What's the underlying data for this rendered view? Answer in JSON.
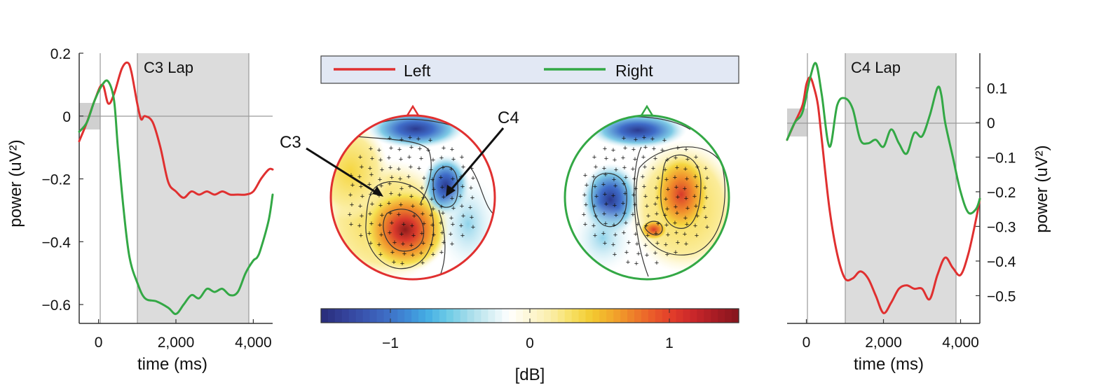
{
  "colors": {
    "left": "#e03030",
    "right": "#33a845",
    "shade": "#dcdcdc",
    "legend_bg": "#e2e8f4",
    "map_low": "#2b3a8f",
    "map_high": "#8b1a1a"
  },
  "legend": {
    "left_label": "Left",
    "right_label": "Right"
  },
  "colorbar": {
    "unit": "[dB]",
    "ticks": [
      "−1",
      "0",
      "1"
    ],
    "colors": [
      "#2a2f7e",
      "#34429a",
      "#3a56b0",
      "#3e6cc4",
      "#3f8ad6",
      "#45aee4",
      "#6ccbe6",
      "#a3dcea",
      "#d3eef3",
      "#ffffff",
      "#fdf7d4",
      "#fbeeaa",
      "#f7e065",
      "#f3cb30",
      "#f2a82b",
      "#ee812a",
      "#ea5a2a",
      "#e03a2a",
      "#c8262a",
      "#a81c24",
      "#8a161e"
    ]
  },
  "topomaps": {
    "callouts": [
      "C3",
      "C4"
    ]
  },
  "chart_data": [
    {
      "type": "line",
      "title": "C3 Lap",
      "xlabel": "time (ms)",
      "ylabel": "power (uV²)",
      "xlim": [
        -500,
        4500
      ],
      "ylim": [
        -0.66,
        0.2
      ],
      "xticks": [
        0,
        2000,
        4000
      ],
      "xtick_labels": [
        "0",
        "2,000",
        "4,000"
      ],
      "yticks": [
        0.2,
        0,
        -0.2,
        -0.4,
        -0.6
      ],
      "ytick_labels": [
        "0.2",
        "0",
        "−0.2",
        "−0.4",
        "−0.6"
      ],
      "yaxis_side": "left",
      "shaded_interval": [
        1000,
        3900
      ],
      "baseline_window": [
        -500,
        0
      ],
      "series": [
        {
          "name": "Left",
          "x": [
            -500,
            -300,
            -100,
            100,
            250,
            400,
            600,
            750,
            850,
            1000,
            1100,
            1200,
            1400,
            1600,
            1800,
            2000,
            2200,
            2400,
            2600,
            2800,
            3000,
            3200,
            3400,
            3600,
            3800,
            4000,
            4200,
            4400,
            4500
          ],
          "y": [
            -0.08,
            -0.02,
            0.05,
            0.1,
            0.04,
            0.07,
            0.15,
            0.17,
            0.14,
            0.04,
            -0.01,
            0.0,
            -0.02,
            -0.1,
            -0.21,
            -0.24,
            -0.26,
            -0.24,
            -0.25,
            -0.24,
            -0.25,
            -0.24,
            -0.25,
            -0.25,
            -0.25,
            -0.24,
            -0.2,
            -0.17,
            -0.17
          ]
        },
        {
          "name": "Right",
          "x": [
            -500,
            -300,
            -100,
            100,
            250,
            400,
            500,
            650,
            800,
            1000,
            1200,
            1500,
            1800,
            2000,
            2200,
            2400,
            2600,
            2800,
            3000,
            3200,
            3400,
            3600,
            3800,
            4000,
            4100,
            4200,
            4400,
            4500
          ],
          "y": [
            -0.05,
            -0.02,
            0.05,
            0.1,
            0.11,
            0.05,
            -0.1,
            -0.3,
            -0.45,
            -0.53,
            -0.58,
            -0.59,
            -0.61,
            -0.63,
            -0.6,
            -0.57,
            -0.58,
            -0.55,
            -0.56,
            -0.55,
            -0.57,
            -0.56,
            -0.5,
            -0.46,
            -0.45,
            -0.42,
            -0.33,
            -0.25
          ]
        }
      ]
    },
    {
      "type": "line",
      "title": "C4 Lap",
      "xlabel": "time (ms)",
      "ylabel": "power (uV²)",
      "xlim": [
        -500,
        4500
      ],
      "ylim": [
        -0.58,
        0.2
      ],
      "xticks": [
        0,
        2000,
        4000
      ],
      "xtick_labels": [
        "0",
        "2,000",
        "4,000"
      ],
      "yticks": [
        0.1,
        0,
        -0.1,
        -0.2,
        -0.3,
        -0.4,
        -0.5
      ],
      "ytick_labels": [
        "0.1",
        "0",
        "−0.1",
        "−0.2",
        "−0.3",
        "−0.4",
        "−0.5"
      ],
      "yaxis_side": "right",
      "shaded_interval": [
        1000,
        3900
      ],
      "baseline_window": [
        -500,
        0
      ],
      "series": [
        {
          "name": "Left",
          "x": [
            -500,
            -300,
            -100,
            0,
            100,
            200,
            300,
            400,
            600,
            800,
            1000,
            1200,
            1400,
            1600,
            1800,
            2000,
            2200,
            2400,
            2600,
            2800,
            3000,
            3200,
            3400,
            3600,
            3800,
            4000,
            4200,
            4400,
            4500
          ],
          "y": [
            -0.05,
            0.0,
            0.05,
            0.11,
            0.13,
            0.1,
            0.05,
            -0.05,
            -0.25,
            -0.38,
            -0.45,
            -0.45,
            -0.43,
            -0.45,
            -0.5,
            -0.55,
            -0.52,
            -0.48,
            -0.47,
            -0.48,
            -0.48,
            -0.51,
            -0.44,
            -0.39,
            -0.42,
            -0.44,
            -0.38,
            -0.28,
            -0.22
          ]
        },
        {
          "name": "Right",
          "x": [
            -500,
            -300,
            -100,
            100,
            250,
            400,
            600,
            800,
            1000,
            1200,
            1400,
            1600,
            1800,
            2000,
            2200,
            2400,
            2600,
            2800,
            3000,
            3200,
            3400,
            3500,
            3600,
            3800,
            4000,
            4200,
            4400,
            4500
          ],
          "y": [
            -0.05,
            0.0,
            0.03,
            0.13,
            0.17,
            0.08,
            -0.07,
            0.05,
            0.07,
            0.04,
            -0.05,
            -0.06,
            -0.05,
            -0.07,
            -0.02,
            -0.06,
            -0.09,
            -0.03,
            -0.04,
            0.02,
            0.1,
            0.08,
            0.0,
            -0.1,
            -0.2,
            -0.26,
            -0.25,
            -0.22
          ]
        }
      ]
    }
  ]
}
